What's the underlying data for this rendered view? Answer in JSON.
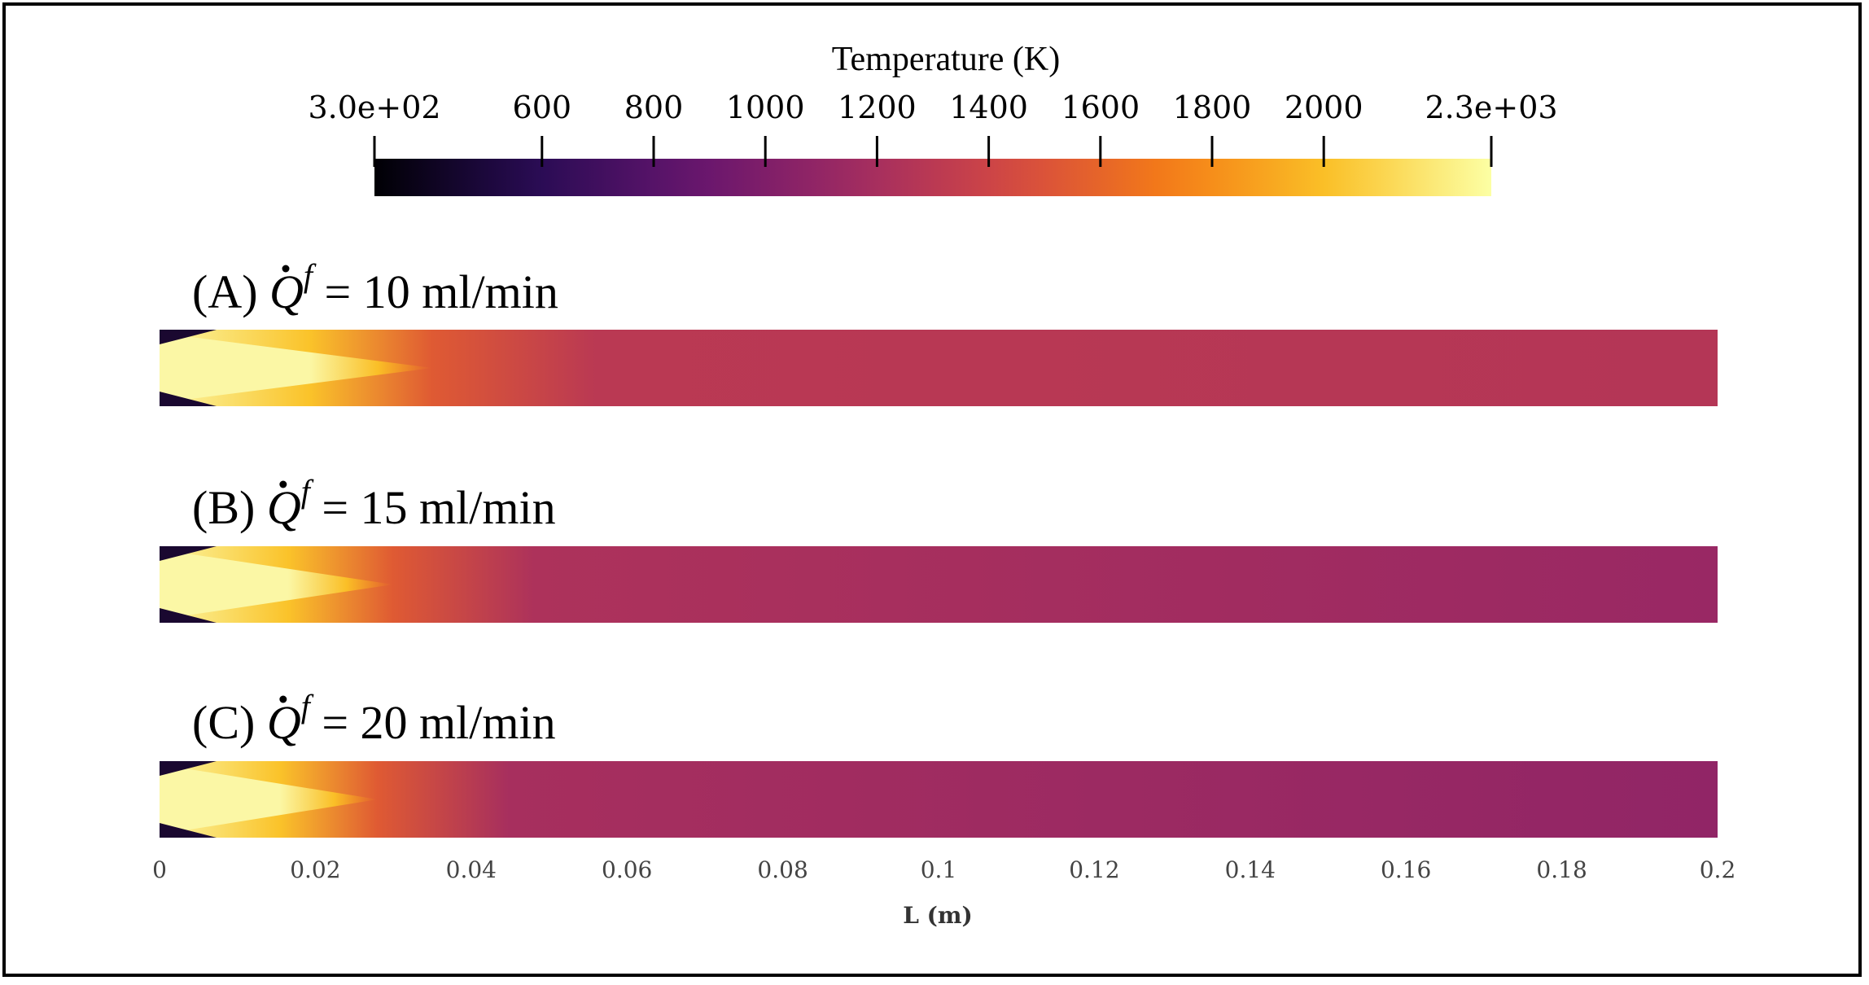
{
  "chart_data": {
    "type": "heatmap",
    "colorbar": {
      "title": "Temperature (K)",
      "colormap": "inferno",
      "range": [
        300,
        2300
      ],
      "ticks": [
        300,
        600,
        800,
        1000,
        1200,
        1400,
        1600,
        1800,
        2000,
        2300
      ],
      "tick_labels": [
        "3.0e+02",
        "600",
        "800",
        "1000",
        "1200",
        "1400",
        "1600",
        "1800",
        "2000",
        "2.3e+03"
      ]
    },
    "panels": [
      {
        "label": "(A) Q̇ᶠ = 10 ml/min",
        "prefix": "(A)",
        "value": "10 ml/min",
        "flow_rate": 10,
        "hot_core_length": 0.035,
        "bulk_temperature": [
          1300,
          1270
        ]
      },
      {
        "label": "(B) Q̇ᶠ = 15 ml/min",
        "prefix": "(B)",
        "value": "15 ml/min",
        "flow_rate": 15,
        "hot_core_length": 0.03,
        "bulk_temperature": [
          1230,
          1130
        ]
      },
      {
        "label": "(C) Q̇ᶠ = 20 ml/min",
        "prefix": "(C)",
        "value": "20 ml/min",
        "flow_rate": 20,
        "hot_core_length": 0.028,
        "bulk_temperature": [
          1200,
          1090
        ]
      }
    ],
    "x_axis": {
      "label": "L (m)",
      "range": [
        0,
        0.2
      ],
      "ticks": [
        0,
        0.02,
        0.04,
        0.06,
        0.08,
        0.1,
        0.12,
        0.14,
        0.16,
        0.18,
        0.2
      ],
      "tick_labels": [
        "0",
        "0.02",
        "0.04",
        "0.06",
        "0.08",
        "0.1",
        "0.12",
        "0.14",
        "0.16",
        "0.18",
        "0.2"
      ]
    },
    "symbol": {
      "Q": "Q",
      "sup": "f",
      "eq": "="
    }
  },
  "colors": {
    "stops": [
      "#000004",
      "#280b54",
      "#65156e",
      "#9f2a63",
      "#d44842",
      "#f57d15",
      "#fac228",
      "#fcffa4"
    ]
  }
}
